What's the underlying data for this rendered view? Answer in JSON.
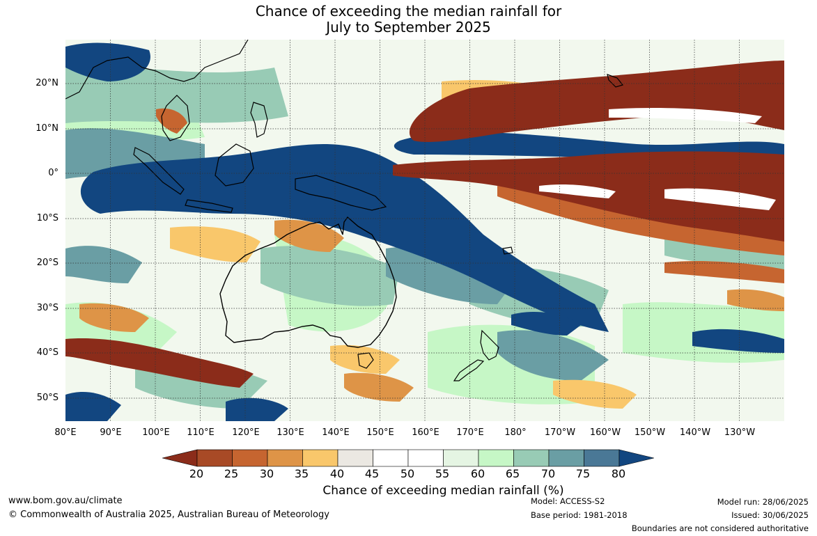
{
  "title": [
    "Chance of exceeding the median rainfall for",
    "July to September 2025"
  ],
  "lat_labels": [
    "20°N",
    "10°N",
    "0°",
    "10°S",
    "20°S",
    "30°S",
    "40°S",
    "50°S"
  ],
  "lon_labels": [
    "80°E",
    "90°E",
    "100°E",
    "110°E",
    "120°E",
    "130°E",
    "140°E",
    "150°E",
    "160°E",
    "170°E",
    "180°",
    "170°W",
    "160°W",
    "150°W",
    "140°W",
    "130°W"
  ],
  "colorbar": {
    "ticks": [
      "20",
      "25",
      "30",
      "35",
      "40",
      "45",
      "50",
      "55",
      "60",
      "65",
      "70",
      "75",
      "80"
    ],
    "colors": [
      "#a84a26",
      "#c66530",
      "#de9447",
      "#f9c76b",
      "#ebe8e2",
      "#ffffff",
      "#ffffff",
      "#e5f5e3",
      "#c6f7c6",
      "#98cbb5",
      "#6a9ea4",
      "#4a7896"
    ],
    "low_extend_color": "#8b2c1a",
    "high_extend_color": "#124680",
    "label": "Chance of exceeding median rainfall (%)"
  },
  "footer": {
    "website": "www.bom.gov.au/climate",
    "copyright": "© Commonwealth of Australia 2025, Australian Bureau of Meteorology",
    "model": "Model: ACCESS-S2",
    "base_period": "Base period: 1981-2018",
    "model_run": "Model run: 28/06/2025",
    "issued": "Issued: 30/06/2025",
    "disclaimer": "Boundaries are not considered authoritative"
  }
}
